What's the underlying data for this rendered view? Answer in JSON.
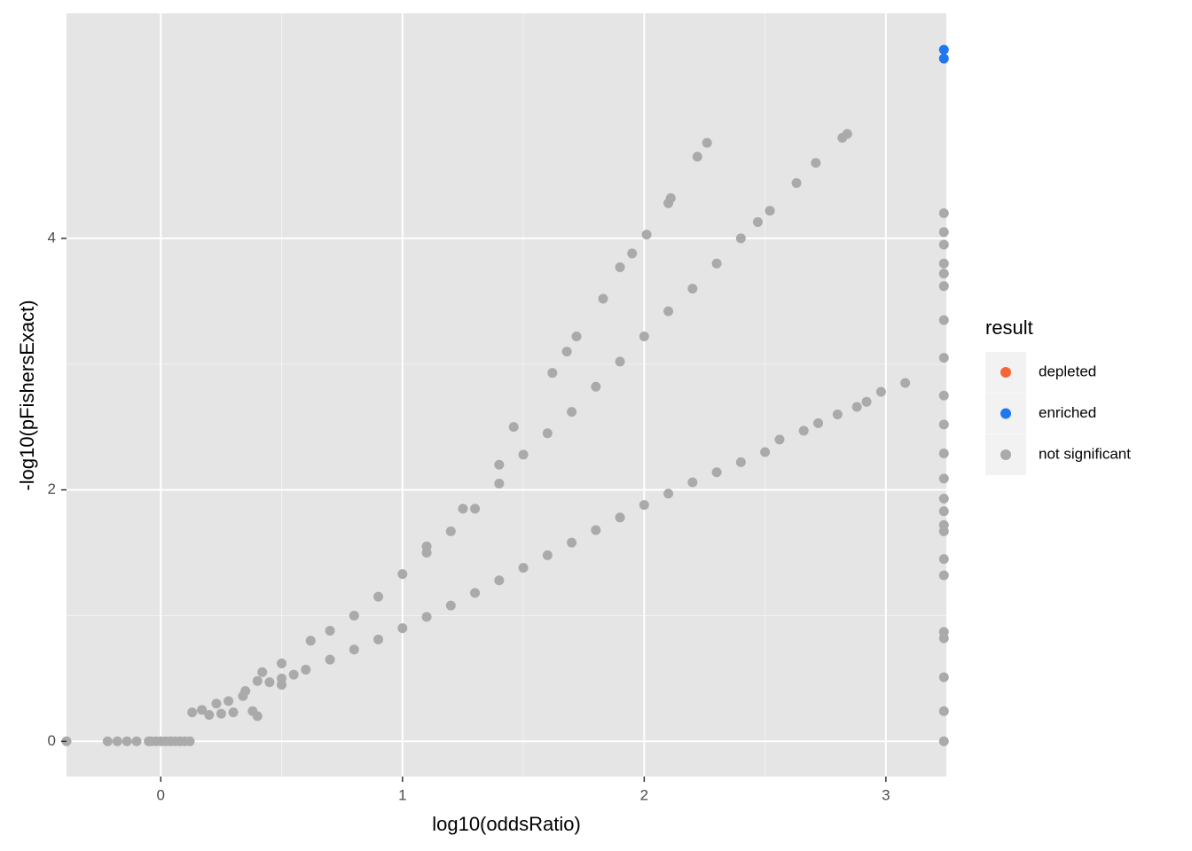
{
  "chart_data": {
    "type": "scatter",
    "x_label": "log10(oddsRatio)",
    "y_label": "-log10(pFishersExact)",
    "legend_title": "result",
    "legend_position": "right",
    "grid": true,
    "xlim": [
      -0.39,
      3.25
    ],
    "ylim": [
      -0.28,
      5.79
    ],
    "xticks": [
      0,
      1,
      2,
      3
    ],
    "yticks": [
      0,
      2,
      4
    ],
    "series": [
      {
        "name": "depleted",
        "color": "#f4663a",
        "x": [],
        "y": []
      },
      {
        "name": "enriched",
        "color": "#2077f2",
        "x": [
          3.24,
          3.24
        ],
        "y": [
          5.5,
          5.43
        ]
      },
      {
        "name": "not significant",
        "color": "#aaaaaa",
        "x": [
          -0.39,
          -0.22,
          -0.18,
          -0.14,
          -0.1,
          -0.05,
          -0.04,
          -0.02,
          0.0,
          0.02,
          0.04,
          0.06,
          0.08,
          0.1,
          0.12,
          0.13,
          0.17,
          0.2,
          0.23,
          0.25,
          0.28,
          0.3,
          0.34,
          0.38,
          0.4,
          0.4,
          0.5,
          0.45,
          0.5,
          0.55,
          0.6,
          0.7,
          0.8,
          0.9,
          1.0,
          1.1,
          1.2,
          1.3,
          1.4,
          1.5,
          1.6,
          1.7,
          1.8,
          1.9,
          2.0,
          2.1,
          2.2,
          2.3,
          2.4,
          2.5,
          2.56,
          2.66,
          2.72,
          2.8,
          2.88,
          2.92,
          2.98,
          3.08,
          0.35,
          0.42,
          0.5,
          0.62,
          0.7,
          0.8,
          0.9,
          1.0,
          1.1,
          1.2,
          1.3,
          1.4,
          1.5,
          1.6,
          1.7,
          1.8,
          1.9,
          2.0,
          2.1,
          2.2,
          2.3,
          2.4,
          1.1,
          1.25,
          1.4,
          1.46,
          1.62,
          1.68,
          1.72,
          1.83,
          1.9,
          1.95,
          2.01,
          2.1,
          2.11,
          2.22,
          2.26,
          2.47,
          2.52,
          2.63,
          2.71,
          2.82,
          2.84,
          3.24,
          3.24,
          3.24,
          3.24,
          3.24,
          3.24,
          3.24,
          3.24,
          3.24,
          3.24,
          3.24,
          3.24,
          3.24,
          3.24,
          3.24,
          3.24,
          3.24,
          3.24,
          3.24,
          3.24,
          3.24,
          3.24,
          3.24
        ],
        "y": [
          0,
          0,
          0,
          0,
          0,
          0,
          0,
          0,
          0,
          0,
          0,
          0,
          0,
          0,
          0,
          0.23,
          0.25,
          0.21,
          0.3,
          0.22,
          0.32,
          0.23,
          0.36,
          0.24,
          0.2,
          0.48,
          0.45,
          0.47,
          0.5,
          0.53,
          0.57,
          0.65,
          0.73,
          0.81,
          0.9,
          0.99,
          1.08,
          1.18,
          1.28,
          1.38,
          1.48,
          1.58,
          1.68,
          1.78,
          1.88,
          1.97,
          2.06,
          2.14,
          2.22,
          2.3,
          2.4,
          2.47,
          2.53,
          2.6,
          2.66,
          2.7,
          2.78,
          2.85,
          0.4,
          0.55,
          0.62,
          0.8,
          0.88,
          1.0,
          1.15,
          1.33,
          1.5,
          1.67,
          1.85,
          2.05,
          2.28,
          2.45,
          2.62,
          2.82,
          3.02,
          3.22,
          3.42,
          3.6,
          3.8,
          4.0,
          1.55,
          1.85,
          2.2,
          2.5,
          2.93,
          3.1,
          3.22,
          3.52,
          3.77,
          3.88,
          4.03,
          4.28,
          4.32,
          4.65,
          4.76,
          4.13,
          4.22,
          4.44,
          4.6,
          4.8,
          4.83,
          0,
          0.24,
          0.51,
          0.82,
          0.87,
          1.32,
          1.45,
          1.67,
          1.72,
          1.83,
          1.93,
          2.09,
          2.29,
          2.52,
          2.75,
          3.05,
          3.35,
          3.62,
          3.72,
          3.8,
          3.95,
          4.05,
          4.2
        ]
      }
    ]
  }
}
